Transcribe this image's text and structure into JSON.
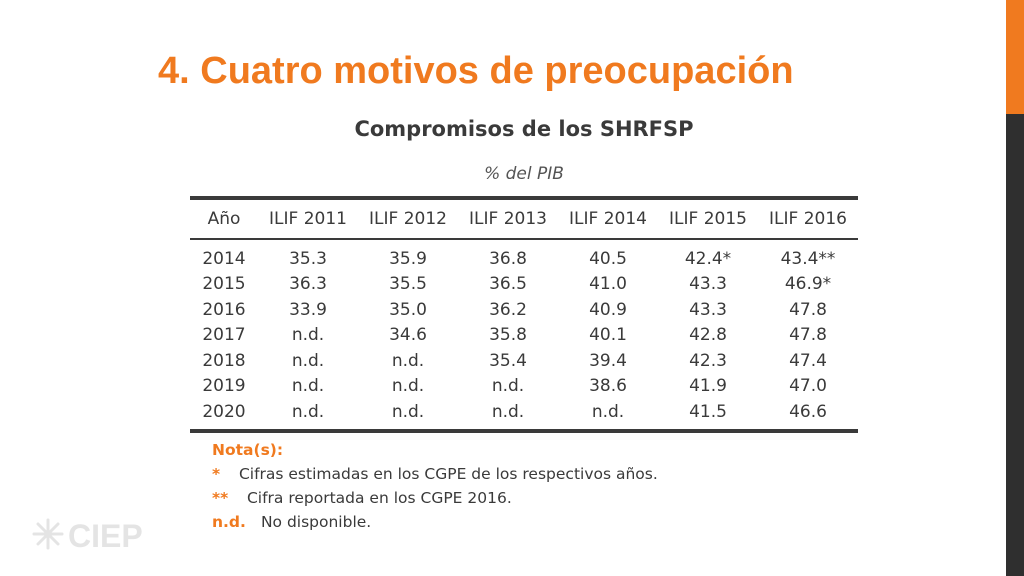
{
  "slide": {
    "title": "4. Cuatro motivos de preocupación"
  },
  "table": {
    "title": "Compromisos de los SHRFSP",
    "subtitle": "% del PIB",
    "headers": [
      "Año",
      "ILIF 2011",
      "ILIF 2012",
      "ILIF 2013",
      "ILIF 2014",
      "ILIF 2015",
      "ILIF 2016"
    ],
    "rows": [
      [
        "2014",
        "35.3",
        "35.9",
        "36.8",
        "40.5",
        "42.4*",
        "43.4**"
      ],
      [
        "2015",
        "36.3",
        "35.5",
        "36.5",
        "41.0",
        "43.3",
        "46.9*"
      ],
      [
        "2016",
        "33.9",
        "35.0",
        "36.2",
        "40.9",
        "43.3",
        "47.8"
      ],
      [
        "2017",
        "n.d.",
        "34.6",
        "35.8",
        "40.1",
        "42.8",
        "47.8"
      ],
      [
        "2018",
        "n.d.",
        "n.d.",
        "35.4",
        "39.4",
        "42.3",
        "47.4"
      ],
      [
        "2019",
        "n.d.",
        "n.d.",
        "n.d.",
        "38.6",
        "41.9",
        "47.0"
      ],
      [
        "2020",
        "n.d.",
        "n.d.",
        "n.d.",
        "n.d.",
        "41.5",
        "46.6"
      ]
    ]
  },
  "notes": {
    "heading": "Nota(s):",
    "items": [
      {
        "mark": "*",
        "text": "Cifras estimadas en los CGPE de los respectivos años."
      },
      {
        "mark": "**",
        "text": "Cifra reportada en los CGPE 2016."
      },
      {
        "mark": "n.d.",
        "text": "No disponible."
      }
    ]
  },
  "logo": {
    "text": "CIEP"
  },
  "colors": {
    "accent": "#f07a1f",
    "text": "#3a3a3a",
    "sidebar": "#2f2f2f"
  }
}
